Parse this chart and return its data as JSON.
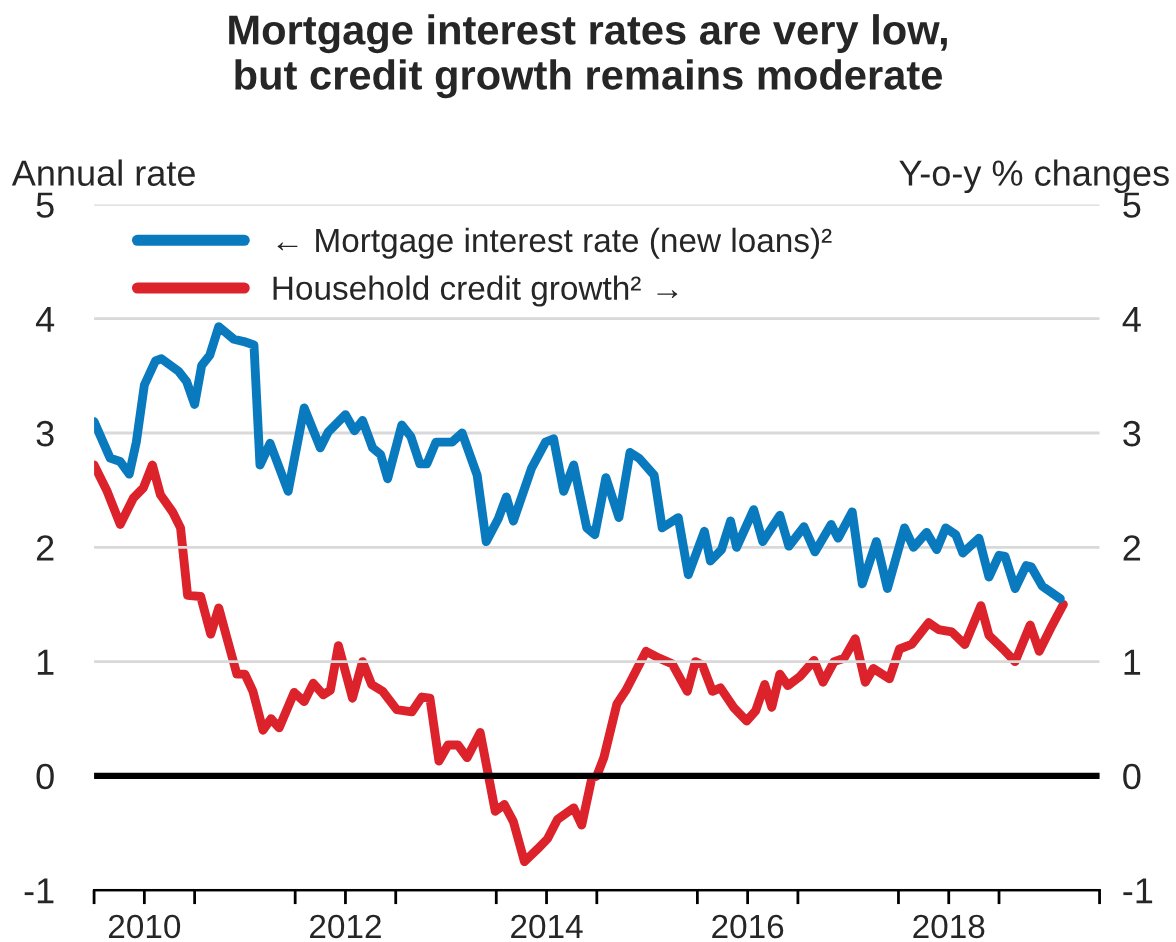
{
  "chart_data": {
    "type": "line",
    "title": "Mortgage interest rates are very low,\nbut credit growth remains moderate",
    "ylabel": "Annual rate",
    "y2label": "Y-o-y % changes",
    "xlim": [
      2010,
      2020
    ],
    "xticks": [
      {
        "value": 2010,
        "label": null
      },
      {
        "value": 2010.5,
        "label": "2010"
      },
      {
        "value": 2011,
        "label": null
      },
      {
        "value": 2012,
        "label": null
      },
      {
        "value": 2012.5,
        "label": "2012"
      },
      {
        "value": 2013,
        "label": null
      },
      {
        "value": 2014,
        "label": null
      },
      {
        "value": 2014.5,
        "label": "2014"
      },
      {
        "value": 2015,
        "label": null
      },
      {
        "value": 2016,
        "label": null
      },
      {
        "value": 2016.5,
        "label": "2016"
      },
      {
        "value": 2017,
        "label": null
      },
      {
        "value": 2018,
        "label": null
      },
      {
        "value": 2018.5,
        "label": "2018"
      },
      {
        "value": 2019,
        "label": null
      },
      {
        "value": 2020,
        "label": null
      }
    ],
    "ylim": [
      -1,
      5
    ],
    "yticks": [
      -1,
      0,
      1,
      2,
      3,
      4,
      5
    ],
    "y2lim": [
      -1,
      5
    ],
    "y2ticks": [
      -1,
      0,
      1,
      2,
      3,
      4,
      5
    ],
    "grid": "y",
    "legend": "top left",
    "line_style": "solid",
    "marker": "none",
    "ref_lines": [
      {
        "axis": "y",
        "value": 0,
        "label": null,
        "color": "#000000"
      }
    ],
    "series": [
      {
        "name": "← Mortgage interest rate (new loans)²",
        "color": "#0a7abf",
        "x": [
          2010.0,
          2010.16,
          2010.26,
          2010.35,
          2010.42,
          2010.5,
          2010.61,
          2010.67,
          2010.84,
          2010.92,
          2011.0,
          2011.07,
          2011.15,
          2011.24,
          2011.39,
          2011.49,
          2011.59,
          2011.65,
          2011.75,
          2011.93,
          2012.09,
          2012.25,
          2012.33,
          2012.5,
          2012.59,
          2012.67,
          2012.77,
          2012.85,
          2012.92,
          2013.06,
          2013.15,
          2013.24,
          2013.31,
          2013.4,
          2013.56,
          2013.66,
          2013.81,
          2013.9,
          2014.02,
          2014.1,
          2014.17,
          2014.35,
          2014.49,
          2014.57,
          2014.67,
          2014.77,
          2014.9,
          2014.98,
          2015.09,
          2015.22,
          2015.33,
          2015.42,
          2015.57,
          2015.65,
          2015.81,
          2015.91,
          2016.07,
          2016.13,
          2016.24,
          2016.33,
          2016.39,
          2016.56,
          2016.65,
          2016.82,
          2016.91,
          2017.06,
          2017.17,
          2017.33,
          2017.4,
          2017.54,
          2017.64,
          2017.78,
          2017.89,
          2018.06,
          2018.15,
          2018.28,
          2018.38,
          2018.47,
          2018.57,
          2018.64,
          2018.8,
          2018.9,
          2019.0,
          2019.06,
          2019.16,
          2019.27,
          2019.32,
          2019.43,
          2019.61
        ],
        "values": [
          3.1,
          2.78,
          2.75,
          2.64,
          2.92,
          3.42,
          3.63,
          3.65,
          3.54,
          3.45,
          3.25,
          3.59,
          3.68,
          3.93,
          3.82,
          3.8,
          3.77,
          2.72,
          2.91,
          2.49,
          3.22,
          2.87,
          3.01,
          3.16,
          3.02,
          3.11,
          2.87,
          2.81,
          2.6,
          3.07,
          2.97,
          2.73,
          2.73,
          2.92,
          2.92,
          3.0,
          2.63,
          2.05,
          2.25,
          2.44,
          2.23,
          2.69,
          2.92,
          2.95,
          2.49,
          2.72,
          2.17,
          2.11,
          2.61,
          2.26,
          2.83,
          2.78,
          2.63,
          2.17,
          2.26,
          1.76,
          2.14,
          1.88,
          1.98,
          2.23,
          2.0,
          2.33,
          2.05,
          2.28,
          2.01,
          2.18,
          1.96,
          2.2,
          2.08,
          2.31,
          1.68,
          2.05,
          1.64,
          2.17,
          2.0,
          2.13,
          1.98,
          2.17,
          2.11,
          1.95,
          2.08,
          1.74,
          1.93,
          1.92,
          1.64,
          1.84,
          1.83,
          1.66,
          1.55
        ]
      },
      {
        "name": "Household credit growth² →",
        "color": "#dc222b",
        "axis": "y2",
        "x": [
          2010.0,
          2010.13,
          2010.26,
          2010.39,
          2010.49,
          2010.58,
          2010.66,
          2010.78,
          2010.86,
          2010.93,
          2011.06,
          2011.16,
          2011.24,
          2011.32,
          2011.42,
          2011.5,
          2011.58,
          2011.68,
          2011.76,
          2011.84,
          2011.99,
          2012.09,
          2012.18,
          2012.28,
          2012.35,
          2012.43,
          2012.57,
          2012.67,
          2012.76,
          2012.87,
          2013.01,
          2013.16,
          2013.26,
          2013.34,
          2013.43,
          2013.52,
          2013.62,
          2013.71,
          2013.84,
          2013.99,
          2014.08,
          2014.17,
          2014.28,
          2014.41,
          2014.51,
          2014.61,
          2014.77,
          2014.85,
          2014.95,
          2015.0,
          2015.07,
          2015.2,
          2015.29,
          2015.49,
          2015.62,
          2015.75,
          2015.9,
          2015.98,
          2016.05,
          2016.15,
          2016.23,
          2016.36,
          2016.49,
          2016.58,
          2016.67,
          2016.74,
          2016.82,
          2016.9,
          2017.02,
          2017.16,
          2017.25,
          2017.36,
          2017.46,
          2017.57,
          2017.67,
          2017.75,
          2017.91,
          2018.01,
          2018.13,
          2018.3,
          2018.4,
          2018.53,
          2018.66,
          2018.82,
          2018.9,
          2019.04,
          2019.16,
          2019.31,
          2019.4,
          2019.53,
          2019.64
        ],
        "values": [
          2.72,
          2.49,
          2.2,
          2.43,
          2.52,
          2.72,
          2.46,
          2.31,
          2.17,
          1.58,
          1.57,
          1.24,
          1.47,
          1.21,
          0.89,
          0.89,
          0.74,
          0.4,
          0.5,
          0.42,
          0.73,
          0.65,
          0.81,
          0.71,
          0.75,
          1.14,
          0.68,
          1.0,
          0.8,
          0.74,
          0.58,
          0.56,
          0.69,
          0.68,
          0.13,
          0.27,
          0.27,
          0.16,
          0.38,
          -0.31,
          -0.25,
          -0.4,
          -0.75,
          -0.64,
          -0.55,
          -0.38,
          -0.28,
          -0.43,
          -0.02,
          0.0,
          0.16,
          0.63,
          0.75,
          1.09,
          1.03,
          0.98,
          0.74,
          1.0,
          0.97,
          0.74,
          0.77,
          0.6,
          0.48,
          0.57,
          0.8,
          0.6,
          0.89,
          0.79,
          0.87,
          1.01,
          0.82,
          1.0,
          1.03,
          1.2,
          0.82,
          0.94,
          0.85,
          1.11,
          1.15,
          1.34,
          1.28,
          1.26,
          1.15,
          1.49,
          1.23,
          1.11,
          1.0,
          1.32,
          1.09,
          1.32,
          1.5
        ]
      }
    ]
  }
}
